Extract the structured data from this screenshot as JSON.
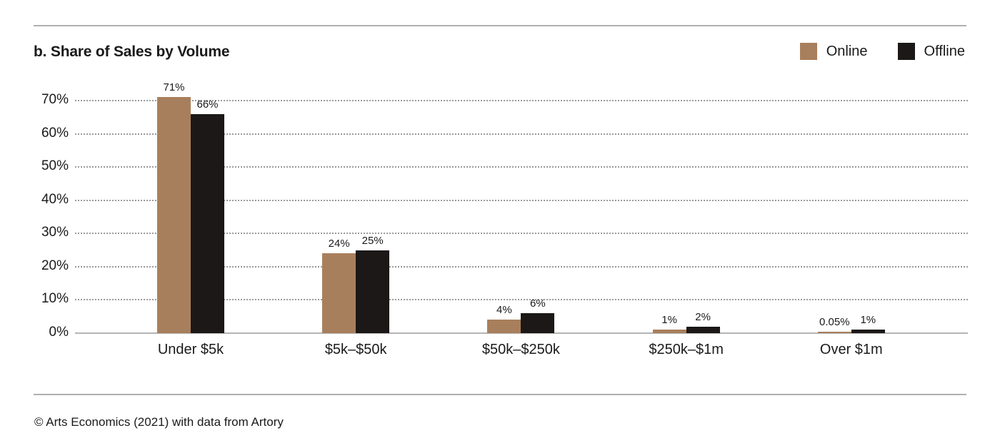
{
  "header": {
    "title": "b. Share of Sales by Volume"
  },
  "legend": [
    {
      "label": "Online",
      "color": "#a87f5c"
    },
    {
      "label": "Offline",
      "color": "#1b1817"
    }
  ],
  "footer": {
    "credit": "© Arts Economics (2021) with data from Artory"
  },
  "chart_data": {
    "type": "bar",
    "title": "b. Share of Sales by Volume",
    "categories": [
      "Under $5k",
      "$5k–$50k",
      "$50k–$250k",
      "$250k–$1m",
      "Over $1m"
    ],
    "series": [
      {
        "name": "Online",
        "color": "#a87f5c",
        "values": [
          71,
          24,
          4,
          1,
          0.05
        ],
        "labels": [
          "71%",
          "24%",
          "4%",
          "1%",
          "0.05%"
        ]
      },
      {
        "name": "Offline",
        "color": "#1b1817",
        "values": [
          66,
          25,
          6,
          2,
          1
        ],
        "labels": [
          "66%",
          "25%",
          "6%",
          "2%",
          "1%"
        ]
      }
    ],
    "y_ticks": [
      "0%",
      "10%",
      "20%",
      "30%",
      "40%",
      "50%",
      "60%",
      "70%"
    ],
    "ylim": [
      0,
      70
    ],
    "grid": "dotted-horizontal",
    "legend_position": "top-right",
    "source": "© Arts Economics (2021) with data from Artory"
  }
}
